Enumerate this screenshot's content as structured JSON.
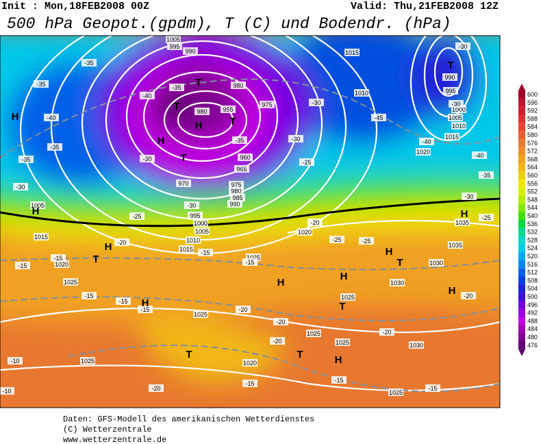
{
  "header": {
    "init": "Init : Mon,18FEB2008 00Z",
    "valid": "Valid: Thu,21FEB2008 12Z",
    "title": "500 hPa Geopot.(gpdm), T (C) und Bodendr. (hPa)"
  },
  "map": {
    "centers": [
      "H",
      "T",
      "T",
      "H",
      "T",
      "H",
      "T",
      "T",
      "H",
      "H",
      "T",
      "H",
      "H",
      "H",
      "H",
      "T",
      "H",
      "T",
      "H",
      "T",
      "T",
      "H"
    ],
    "pressure_labels": [
      1005,
      995,
      990,
      980,
      975,
      980,
      955,
      960,
      965,
      970,
      975,
      980,
      985,
      990,
      995,
      1000,
      1005,
      1010,
      1015,
      1020,
      1025,
      1025,
      1030,
      1035,
      1035,
      1030,
      1025,
      1025,
      1025,
      1020,
      1030,
      1025,
      1025,
      1020,
      1025,
      1015,
      1005,
      1015,
      1010,
      995,
      1000,
      1005,
      1010,
      1015,
      1020,
      990
    ],
    "temperature_labels": [
      -35,
      -35,
      -40,
      -35,
      -35,
      -30,
      -40,
      -35,
      -30,
      -35,
      -30,
      -25,
      -20,
      -30,
      -25,
      -30,
      -45,
      -40,
      -40,
      -35,
      -30,
      -25,
      -20,
      -25,
      -25,
      -20,
      -15,
      -15,
      -15,
      -15,
      -15,
      -15,
      -15,
      -20,
      -20,
      -20,
      -20,
      -15,
      -15,
      -10,
      -10,
      -20,
      -15,
      -30,
      -30
    ]
  },
  "colorbar": {
    "ticks": [
      600,
      596,
      592,
      588,
      584,
      580,
      576,
      572,
      568,
      564,
      560,
      556,
      552,
      548,
      544,
      540,
      536,
      532,
      528,
      524,
      520,
      516,
      512,
      508,
      504,
      500,
      496,
      492,
      488,
      484,
      480,
      476
    ],
    "colors": [
      "#a00028",
      "#c01030",
      "#d02030",
      "#e03030",
      "#e84830",
      "#e86030",
      "#e87830",
      "#f08c28",
      "#f0a020",
      "#f0b818",
      "#f0d010",
      "#f0e800",
      "#d8f000",
      "#b0f000",
      "#80e800",
      "#40e000",
      "#00d840",
      "#00d890",
      "#00d8c8",
      "#00c8e8",
      "#00a8f0",
      "#0088f0",
      "#0060e8",
      "#0040e0",
      "#2020d8",
      "#4010d8",
      "#7000e0",
      "#9800e0",
      "#c000e0",
      "#a000b0",
      "#800090",
      "#600070"
    ]
  },
  "footer": {
    "line1": "Daten: GFS-Modell des amerikanischen Wetterdienstes",
    "line2": "(C) Wetterzentrale",
    "line3": "www.wetterzentrale.de"
  }
}
